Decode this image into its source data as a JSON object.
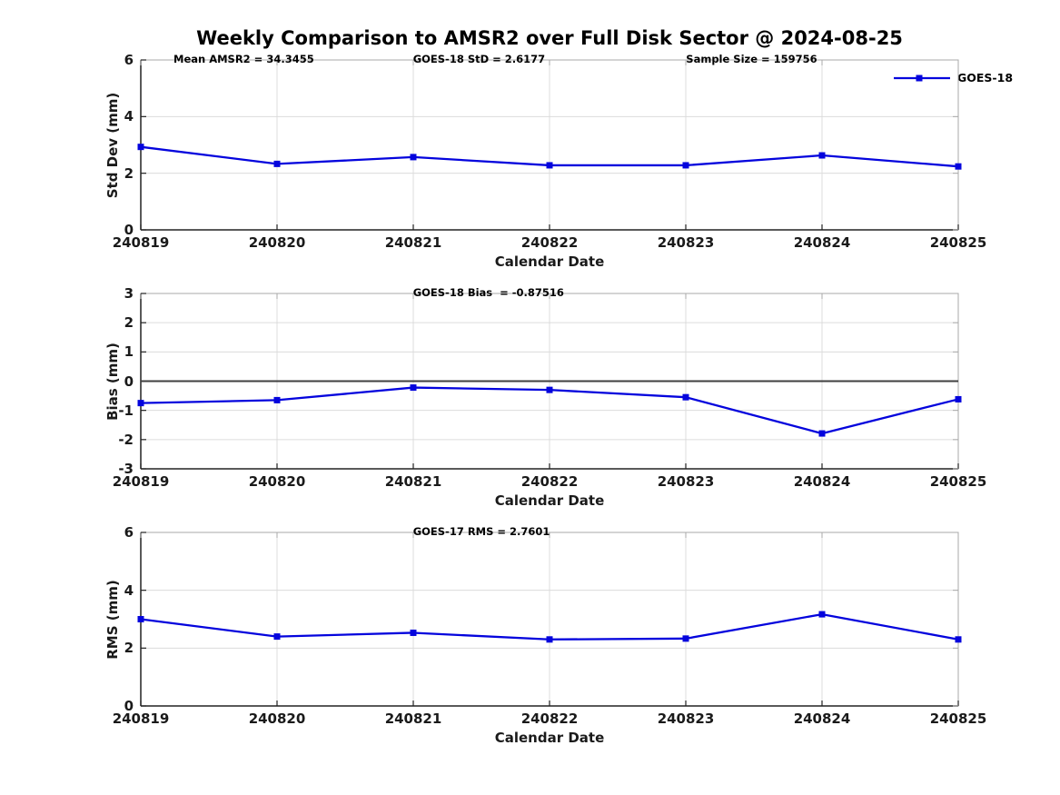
{
  "figure": {
    "title": "Weekly Comparison to AMSR2 over Full Disk Sector @ 2024-08-25",
    "background": "#ffffff"
  },
  "legend": {
    "label": "GOES-18",
    "position": "top-right"
  },
  "colors": {
    "series": "#0404dd",
    "grid": "#dcdcdc",
    "box": "#a8a8a8",
    "spine": "#222222",
    "zero_line": "#3f3f3f",
    "text": "#1a1a1a"
  },
  "chart_data": [
    {
      "type": "line",
      "panel": "std-dev",
      "ylabel": "Std Dev (mm)",
      "xlabel": "Calendar Date",
      "categories": [
        "240819",
        "240820",
        "240821",
        "240822",
        "240823",
        "240824",
        "240825"
      ],
      "series": [
        {
          "name": "GOES-18",
          "marker": "square",
          "values": [
            2.93,
            2.33,
            2.57,
            2.28,
            2.28,
            2.63,
            2.24
          ]
        }
      ],
      "ylim": [
        0,
        6
      ],
      "yticks": [
        0,
        2,
        4,
        6
      ],
      "grid": true,
      "zero_line": false,
      "annotations": [
        "Mean AMSR2 = 34.3455",
        "GOES-18 StD = 2.6177",
        "Sample Size = 159756"
      ],
      "legend_position": "top-right"
    },
    {
      "type": "line",
      "panel": "bias",
      "ylabel": "Bias (mm)",
      "xlabel": "Calendar Date",
      "categories": [
        "240819",
        "240820",
        "240821",
        "240822",
        "240823",
        "240824",
        "240825"
      ],
      "series": [
        {
          "name": "GOES-18",
          "marker": "square",
          "values": [
            -0.75,
            -0.65,
            -0.22,
            -0.3,
            -0.55,
            -1.79,
            -0.62
          ]
        }
      ],
      "ylim": [
        -3,
        3
      ],
      "yticks": [
        -3,
        -2,
        -1,
        0,
        1,
        2,
        3
      ],
      "grid": true,
      "zero_line": true,
      "annotations": [
        "GOES-18 Bias  = -0.87516"
      ],
      "legend_position": "none"
    },
    {
      "type": "line",
      "panel": "rms",
      "ylabel": "RMS (mm)",
      "xlabel": "Calendar Date",
      "categories": [
        "240819",
        "240820",
        "240821",
        "240822",
        "240823",
        "240824",
        "240825"
      ],
      "series": [
        {
          "name": "GOES-18",
          "marker": "square",
          "values": [
            3.0,
            2.4,
            2.53,
            2.3,
            2.33,
            3.17,
            2.3
          ]
        }
      ],
      "ylim": [
        0,
        6
      ],
      "yticks": [
        0,
        2,
        4,
        6
      ],
      "grid": true,
      "zero_line": false,
      "annotations": [
        "GOES-17 RMS = 2.7601"
      ],
      "legend_position": "none"
    }
  ]
}
